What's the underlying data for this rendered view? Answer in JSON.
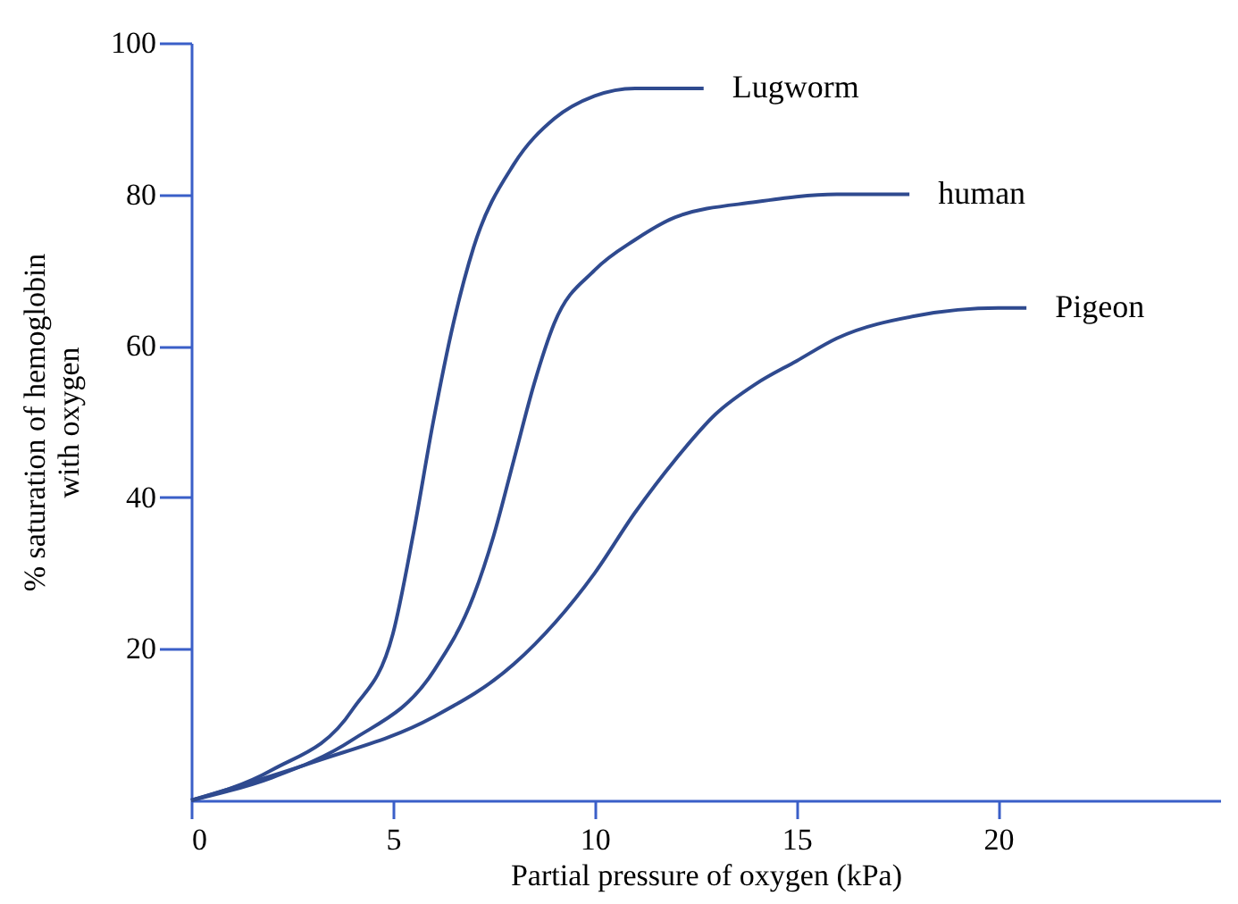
{
  "chart_data": {
    "type": "line",
    "xlabel": "Partial pressure of oxygen (kPa)",
    "ylabel": [
      "% saturation of hemoglobin",
      "with oxygen"
    ],
    "xlim": [
      0,
      25.5
    ],
    "xticks": [
      0,
      5,
      10,
      15,
      20
    ],
    "ylim": [
      0,
      100
    ],
    "yticks": [
      20,
      40,
      60,
      80,
      100
    ],
    "grid": false,
    "marker": "none",
    "line_style": "solid",
    "series": [
      {
        "name": "Lugworm",
        "color": "#2f4a8f",
        "x": [
          0,
          2,
          4,
          5,
          5.5,
          6,
          6.5,
          7,
          8,
          9,
          10,
          11,
          12,
          12.7
        ],
        "values": [
          0,
          4,
          12,
          22,
          35,
          50,
          63,
          73,
          84,
          90,
          93,
          94,
          94,
          94
        ]
      },
      {
        "name": "human",
        "color": "#2f4a8f",
        "x": [
          0,
          2,
          4,
          6,
          7,
          7.5,
          8,
          8.5,
          9,
          10,
          11,
          12,
          14,
          16,
          17.8
        ],
        "values": [
          0,
          3,
          8,
          17,
          27,
          35,
          45,
          55,
          63,
          70,
          74,
          77,
          79,
          80,
          80
        ]
      },
      {
        "name": "Pigeon",
        "color": "#2f4a8f",
        "x": [
          0,
          3,
          6,
          8,
          10,
          11,
          12,
          13,
          14,
          15,
          16,
          18,
          20,
          20.7
        ],
        "values": [
          0,
          5,
          11,
          18,
          30,
          38,
          45,
          51,
          55,
          58,
          61,
          64,
          65,
          65
        ]
      }
    ]
  }
}
